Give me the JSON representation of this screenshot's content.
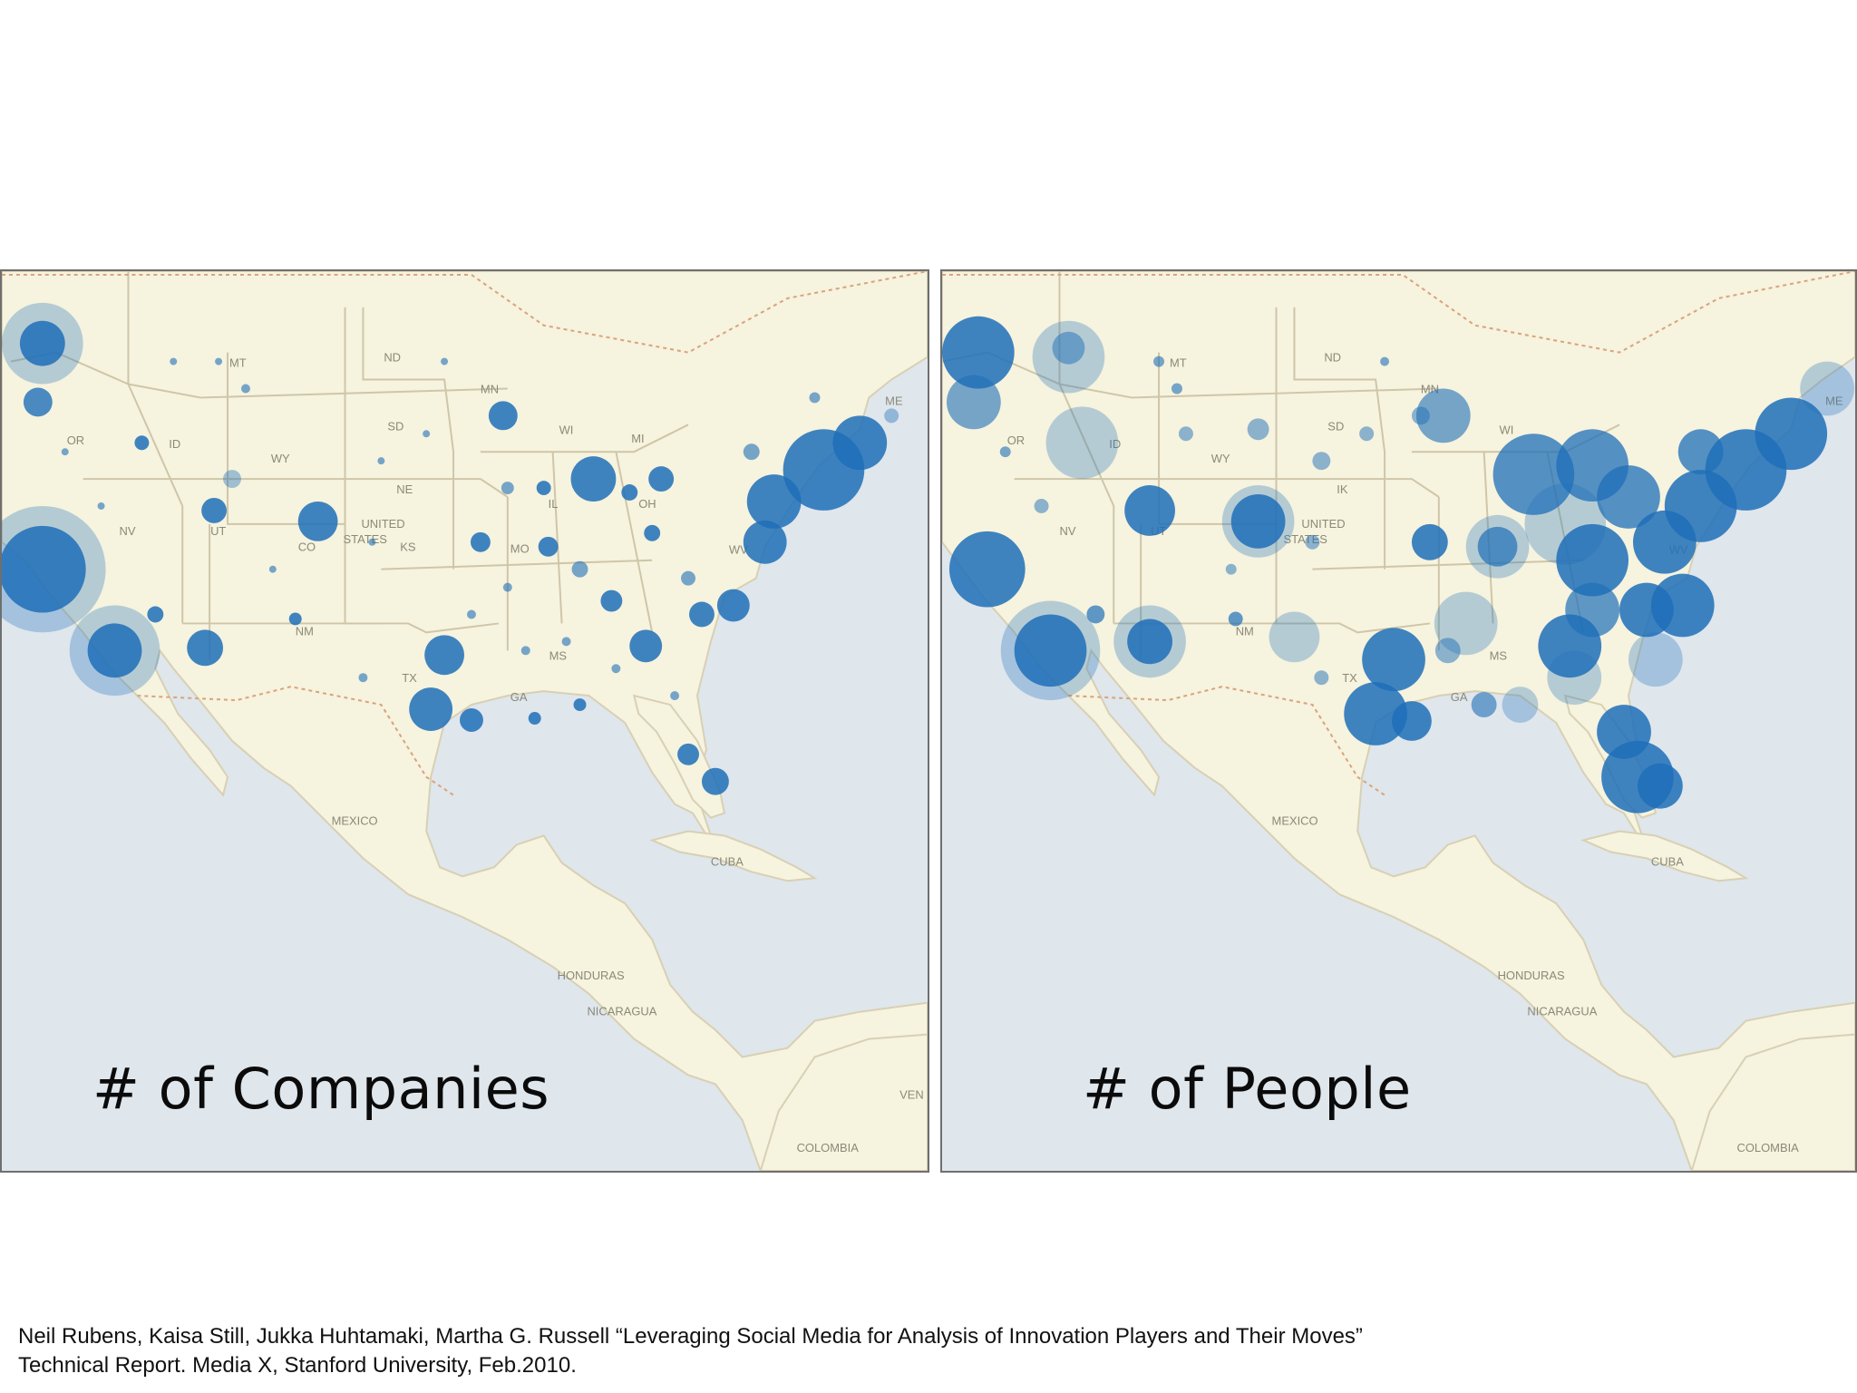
{
  "panels": [
    {
      "caption": "# of Companies",
      "state_labels": [
        "MT",
        "ND",
        "SD",
        "MN",
        "WI",
        "MI",
        "OR",
        "ID",
        "WY",
        "NE",
        "NV",
        "UT",
        "CO",
        "KS",
        "MO",
        "IL",
        "OH",
        "WV",
        "NM",
        "TX",
        "MS",
        "GA",
        "ME",
        "UNITED",
        "STATES"
      ],
      "place_labels": [
        "MEXICO",
        "CUBA",
        "HONDURAS",
        "NICARAGUA",
        "COLOMBIA",
        "VEN"
      ]
    },
    {
      "caption": "# of People",
      "state_labels": [
        "MT",
        "ND",
        "SD",
        "MN",
        "WI",
        "OR",
        "ID",
        "WY",
        "IK",
        "NV",
        "UT",
        "NM",
        "TX",
        "MS",
        "GA",
        "WV",
        "ME",
        "UNITED",
        "STATES"
      ],
      "place_labels": [
        "MEXICO",
        "CUBA",
        "HONDURAS",
        "NICARAGUA",
        "COLOMBIA"
      ]
    }
  ],
  "citation": {
    "line1": "Neil Rubens, Kaisa Still, Jukka Huhtamaki, Martha G. Russell “Leveraging Social Media for Analysis of Innovation Players and Their Moves”",
    "line2": "Technical Report.  Media X, Stanford University, Feb.2010."
  },
  "colors": {
    "land": "#f6f3df",
    "water": "#dfe6ec",
    "border": "#cfc6a8",
    "bubble": "#1f6fb8"
  }
}
